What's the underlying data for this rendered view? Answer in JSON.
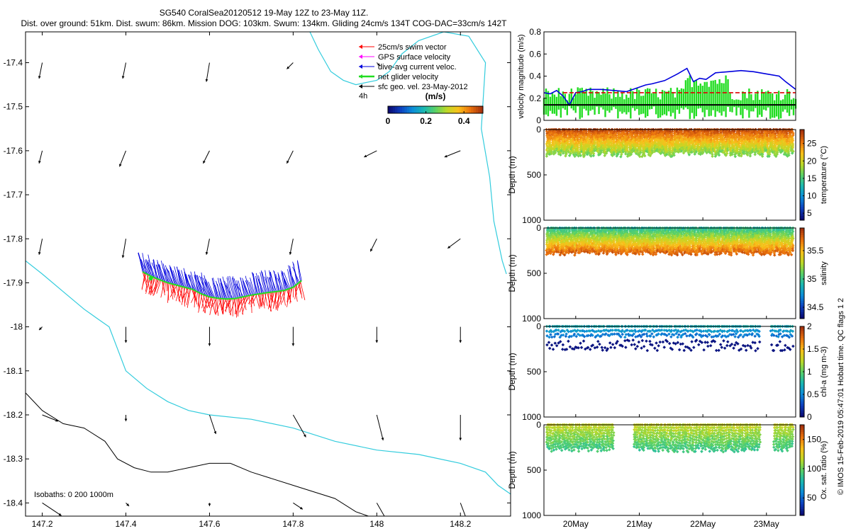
{
  "header": {
    "title": "SG540 CoralSea20120512 19-May 12Z to 23-May 11Z.",
    "subtitle": "Dist. over ground: 51km. Dist. swum: 86km. Mission DOG: 103km. Swum: 134km. Gliding 24cm/s 134T COG-DAC=33cm/s 142T"
  },
  "copyright": "© IMOS 15-Feb-2019 05:47:01 Hobart time. QC flags 1 2",
  "colors": {
    "coast": "#33ccdd",
    "isobath": "#000000",
    "swim": "#ff0000",
    "gps": "#ff00ff",
    "dac": "#0000dd",
    "net": "#22dd22",
    "sfc": "#000000"
  },
  "chart_data": [
    {
      "type": "scatter",
      "name": "map",
      "xlim": [
        147.16,
        148.32
      ],
      "ylim": [
        -18.43,
        -17.33
      ],
      "xticks": [
        "147.2",
        "147.4",
        "147.6",
        "147.8",
        "148",
        "148.2"
      ],
      "xtick_values": [
        147.2,
        147.4,
        147.6,
        147.8,
        148.0,
        148.2
      ],
      "yticks": [
        "-17.4",
        "-17.5",
        "-17.6",
        "-17.7",
        "-17.8",
        "-17.9",
        "-18",
        "-18.1",
        "-18.2",
        "-18.3",
        "-18.4"
      ],
      "ytick_values": [
        -17.4,
        -17.5,
        -17.6,
        -17.7,
        -17.8,
        -17.9,
        -18.0,
        -18.1,
        -18.2,
        -18.3,
        -18.4
      ],
      "legend": [
        {
          "label": "25cm/s swim vector",
          "color": "#ff0000"
        },
        {
          "label": "GPS surface velocity",
          "color": "#ff00ff"
        },
        {
          "label": "dive-avg current veloc.",
          "color": "#0000dd"
        },
        {
          "label": "net glider velocity",
          "color": "#22dd22"
        },
        {
          "label": "sfc geo. vel. 23-May-2012",
          "color": "#000000"
        }
      ],
      "legend_note": "4h",
      "colorbar": {
        "label": "(m/s)",
        "ticks": [
          "0",
          "0.2",
          "0.4"
        ],
        "tick_values": [
          0,
          0.2,
          0.4
        ],
        "range": [
          0,
          0.5
        ]
      },
      "isobath_label": "Isobaths: 0   200  1000m",
      "track_lon": [
        147.44,
        147.46,
        147.48,
        147.5,
        147.52,
        147.54,
        147.56,
        147.58,
        147.6,
        147.62,
        147.64,
        147.66,
        147.68,
        147.7,
        147.72,
        147.74,
        147.76,
        147.78,
        147.8,
        147.82
      ],
      "track_lat": [
        -17.875,
        -17.885,
        -17.893,
        -17.9,
        -17.905,
        -17.91,
        -17.915,
        -17.925,
        -17.932,
        -17.935,
        -17.937,
        -17.936,
        -17.932,
        -17.928,
        -17.925,
        -17.922,
        -17.92,
        -17.917,
        -17.91,
        -17.895
      ],
      "coast1_lon": [
        147.84,
        147.86,
        147.89,
        147.92,
        147.95,
        148.0,
        148.03,
        148.06,
        148.1,
        148.16,
        148.22,
        148.26,
        148.25,
        148.27,
        148.28,
        148.3,
        148.31
      ],
      "coast1_lat": [
        -17.33,
        -17.37,
        -17.42,
        -17.44,
        -17.45,
        -17.44,
        -17.42,
        -17.38,
        -17.35,
        -17.33,
        -17.34,
        -17.4,
        -17.55,
        -17.66,
        -17.76,
        -17.85,
        -17.88
      ],
      "coast2_lon": [
        147.16,
        147.2,
        147.25,
        147.3,
        147.33,
        147.36,
        147.38,
        147.4,
        147.45,
        147.5,
        147.55,
        147.6,
        147.7,
        147.8,
        147.9,
        148.0,
        148.1,
        148.2,
        148.26,
        148.29,
        148.32
      ],
      "coast2_lat": [
        -17.85,
        -17.88,
        -17.92,
        -17.96,
        -17.98,
        -18.0,
        -18.05,
        -18.1,
        -18.14,
        -18.17,
        -18.19,
        -18.2,
        -18.21,
        -18.23,
        -18.26,
        -18.28,
        -18.29,
        -18.31,
        -18.33,
        -18.36,
        -18.38
      ],
      "isobath_lon": [
        147.16,
        147.2,
        147.25,
        147.3,
        147.35,
        147.38,
        147.42,
        147.46,
        147.5,
        147.55,
        147.6,
        147.65,
        147.7,
        147.8,
        147.9,
        147.95,
        147.98
      ],
      "isobath_lat": [
        -18.15,
        -18.19,
        -18.22,
        -18.23,
        -18.26,
        -18.3,
        -18.32,
        -18.33,
        -18.33,
        -18.32,
        -18.31,
        -18.31,
        -18.33,
        -18.36,
        -18.39,
        -18.42,
        -18.43
      ],
      "sfc_vectors": [
        {
          "lon": 147.2,
          "lat": -17.4,
          "u": -0.01,
          "v": -0.05
        },
        {
          "lon": 147.4,
          "lat": -17.4,
          "u": -0.01,
          "v": -0.05
        },
        {
          "lon": 147.6,
          "lat": -17.4,
          "u": -0.01,
          "v": -0.06
        },
        {
          "lon": 147.8,
          "lat": -17.4,
          "u": -0.02,
          "v": -0.02
        },
        {
          "lon": 148.0,
          "lat": -17.4,
          "u": 0.01,
          "v": -0.01
        },
        {
          "lon": 147.2,
          "lat": -17.6,
          "u": -0.01,
          "v": -0.04
        },
        {
          "lon": 147.4,
          "lat": -17.6,
          "u": -0.02,
          "v": -0.05
        },
        {
          "lon": 147.6,
          "lat": -17.6,
          "u": -0.02,
          "v": -0.04
        },
        {
          "lon": 147.8,
          "lat": -17.6,
          "u": -0.02,
          "v": -0.04
        },
        {
          "lon": 148.0,
          "lat": -17.6,
          "u": -0.04,
          "v": -0.02
        },
        {
          "lon": 148.2,
          "lat": -17.6,
          "u": -0.05,
          "v": -0.02
        },
        {
          "lon": 147.2,
          "lat": -17.8,
          "u": -0.01,
          "v": -0.05
        },
        {
          "lon": 147.4,
          "lat": -17.8,
          "u": -0.01,
          "v": -0.06
        },
        {
          "lon": 147.6,
          "lat": -17.8,
          "u": -0.01,
          "v": -0.05
        },
        {
          "lon": 147.8,
          "lat": -17.8,
          "u": -0.01,
          "v": -0.05
        },
        {
          "lon": 148.0,
          "lat": -17.8,
          "u": -0.02,
          "v": -0.04
        },
        {
          "lon": 148.2,
          "lat": -17.8,
          "u": -0.04,
          "v": -0.03
        },
        {
          "lon": 147.2,
          "lat": -18.0,
          "u": -0.01,
          "v": -0.01
        },
        {
          "lon": 147.4,
          "lat": -18.0,
          "u": 0.0,
          "v": -0.05
        },
        {
          "lon": 147.6,
          "lat": -18.0,
          "u": 0.0,
          "v": -0.06
        },
        {
          "lon": 147.8,
          "lat": -18.0,
          "u": 0.0,
          "v": -0.06
        },
        {
          "lon": 148.0,
          "lat": -18.0,
          "u": 0.0,
          "v": -0.05
        },
        {
          "lon": 148.2,
          "lat": -18.0,
          "u": 0.0,
          "v": -0.05
        },
        {
          "lon": 147.2,
          "lat": -18.2,
          "u": 0.05,
          "v": -0.02
        },
        {
          "lon": 147.4,
          "lat": -18.2,
          "u": 0.0,
          "v": -0.02
        },
        {
          "lon": 147.6,
          "lat": -18.2,
          "u": 0.02,
          "v": -0.06
        },
        {
          "lon": 147.8,
          "lat": -18.2,
          "u": 0.04,
          "v": -0.07
        },
        {
          "lon": 148.0,
          "lat": -18.2,
          "u": 0.02,
          "v": -0.08
        },
        {
          "lon": 148.2,
          "lat": -18.2,
          "u": 0.0,
          "v": -0.08
        },
        {
          "lon": 147.2,
          "lat": -18.4,
          "u": 0.06,
          "v": -0.04
        },
        {
          "lon": 147.4,
          "lat": -18.4,
          "u": 0.01,
          "v": -0.01
        },
        {
          "lon": 147.6,
          "lat": -18.4,
          "u": 0.0,
          "v": -0.01
        },
        {
          "lon": 147.8,
          "lat": -18.4,
          "u": 0.03,
          "v": -0.02
        },
        {
          "lon": 148.0,
          "lat": -18.4,
          "u": 0.04,
          "v": -0.07
        },
        {
          "lon": 148.2,
          "lat": -18.4,
          "u": 0.03,
          "v": -0.08
        }
      ]
    },
    {
      "type": "line",
      "name": "velocity",
      "ylabel": "velocity magnitude (m/s)",
      "ylim": [
        0,
        0.8
      ],
      "yticks": [
        "0",
        "0.2",
        "0.4",
        "0.6",
        "0.8"
      ],
      "ytick_values": [
        0,
        0.2,
        0.4,
        0.6,
        0.8
      ],
      "xlim_days": [
        19.5,
        23.46
      ],
      "series": [
        {
          "kind": "line",
          "color": "#0000dd",
          "x": [
            19.5,
            19.6,
            19.7,
            19.8,
            19.9,
            20.0,
            20.1,
            20.2,
            20.4,
            20.6,
            20.8,
            21.0,
            21.1,
            21.2,
            21.4,
            21.6,
            21.75,
            21.85,
            21.95,
            22.05,
            22.2,
            22.4,
            22.6,
            22.8,
            23.0,
            23.2,
            23.3,
            23.46
          ],
          "y": [
            0.25,
            0.24,
            0.27,
            0.22,
            0.14,
            0.25,
            0.26,
            0.28,
            0.28,
            0.27,
            0.26,
            0.3,
            0.32,
            0.33,
            0.36,
            0.42,
            0.47,
            0.35,
            0.38,
            0.37,
            0.43,
            0.44,
            0.45,
            0.44,
            0.42,
            0.4,
            0.35,
            0.28
          ]
        },
        {
          "kind": "dashed",
          "color": "#dd0000",
          "x": [
            19.8,
            23.46
          ],
          "y": [
            0.25,
            0.25
          ]
        },
        {
          "kind": "flat",
          "color": "#000000",
          "x": [
            19.5,
            23.46
          ],
          "y": [
            0.14,
            0.14
          ]
        }
      ],
      "net_velocity_bars": {
        "color": "#22dd22",
        "x_start": 19.5,
        "x_end": 23.46,
        "count": 120
      }
    },
    {
      "type": "scatter",
      "name": "temperature",
      "ylabel": "Depth (m)",
      "yticks": [
        "0",
        "500",
        "1000"
      ],
      "ytick_values": [
        0,
        500,
        1000
      ],
      "ylim": [
        1000,
        0
      ],
      "clabel": "temperature (°C)",
      "cticks": [
        "5",
        "10",
        "15",
        "20",
        "25"
      ],
      "ctick_values": [
        5,
        10,
        15,
        20,
        25
      ],
      "crange": [
        3,
        29
      ],
      "profile": {
        "depth_max": [
          230,
          300
        ],
        "surface_value": 28,
        "bottom_value": 17
      }
    },
    {
      "type": "scatter",
      "name": "salinity",
      "ylabel": "Depth (m)",
      "yticks": [
        "0",
        "500",
        "1000"
      ],
      "ytick_values": [
        0,
        500,
        1000
      ],
      "ylim": [
        1000,
        0
      ],
      "clabel": "salinity",
      "cticks": [
        "34.5",
        "35",
        "35.5"
      ],
      "ctick_values": [
        34.5,
        35.0,
        35.5
      ],
      "crange": [
        34.3,
        35.9
      ],
      "profile": {
        "depth_max": [
          250,
          300
        ],
        "surface_value": 34.95,
        "bottom_value": 35.75
      }
    },
    {
      "type": "scatter",
      "name": "chl-a",
      "ylabel": "Depth (m)",
      "yticks": [
        "0",
        "500",
        "1000"
      ],
      "ytick_values": [
        0,
        500,
        1000
      ],
      "ylim": [
        1000,
        0
      ],
      "clabel": "chl-a (mg m-3)",
      "cticks": [
        "0",
        "0.5",
        "1",
        "1.5",
        "2"
      ],
      "ctick_values": [
        0,
        0.5,
        1,
        1.5,
        2
      ],
      "crange": [
        0,
        2
      ],
      "profile": {
        "depth_max": [
          200,
          300
        ],
        "surface_value": 0.7,
        "bottom_value": 0.05
      }
    },
    {
      "type": "scatter",
      "name": "oxygen",
      "ylabel": "Depth (m)",
      "yticks": [
        "0",
        "500",
        "1000"
      ],
      "ytick_values": [
        0,
        500,
        1000
      ],
      "ylim": [
        1000,
        0
      ],
      "clabel": "Ox. sat. ratio (%)",
      "cticks": [
        "50",
        "100",
        "150"
      ],
      "ctick_values": [
        50,
        100,
        150
      ],
      "crange": [
        20,
        175
      ],
      "profile": {
        "depth_max": [
          230,
          300
        ],
        "surface_value": 120,
        "bottom_value": 90
      }
    }
  ],
  "time_axis": {
    "ticks": [
      "20May",
      "21May",
      "22May",
      "23May"
    ],
    "tick_values": [
      20,
      21,
      22,
      23
    ]
  }
}
